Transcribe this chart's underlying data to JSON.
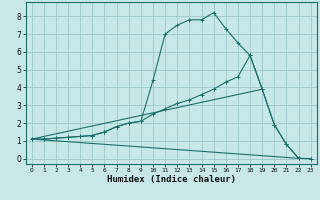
{
  "title": "",
  "xlabel": "Humidex (Indice chaleur)",
  "bg_color": "#c8e8e8",
  "line_color": "#1a7068",
  "grid_color": "#a0c8c8",
  "xlim": [
    -0.5,
    23.5
  ],
  "ylim": [
    -0.3,
    8.8
  ],
  "xticks": [
    0,
    1,
    2,
    3,
    4,
    5,
    6,
    7,
    8,
    9,
    10,
    11,
    12,
    13,
    14,
    15,
    16,
    17,
    18,
    19,
    20,
    21,
    22,
    23
  ],
  "yticks": [
    0,
    1,
    2,
    3,
    4,
    5,
    6,
    7,
    8
  ],
  "line1_x": [
    0,
    1,
    2,
    3,
    4,
    5,
    6,
    7,
    8,
    9,
    10,
    11,
    12,
    13,
    14,
    15,
    16,
    17,
    18,
    19,
    20,
    21,
    22,
    23
  ],
  "line1_y": [
    1.1,
    1.1,
    1.15,
    1.2,
    1.25,
    1.3,
    1.5,
    1.8,
    2.0,
    2.1,
    4.4,
    7.0,
    7.5,
    7.8,
    7.8,
    8.2,
    7.3,
    6.5,
    5.8,
    3.9,
    1.9,
    0.8,
    0.02,
    0.0
  ],
  "line2_x": [
    0,
    1,
    2,
    3,
    4,
    5,
    6,
    7,
    8,
    9,
    10,
    11,
    12,
    13,
    14,
    15,
    16,
    17,
    18,
    19,
    20,
    21,
    22,
    23
  ],
  "line2_y": [
    1.1,
    1.1,
    1.15,
    1.2,
    1.25,
    1.3,
    1.5,
    1.8,
    2.0,
    2.1,
    2.5,
    2.8,
    3.1,
    3.3,
    3.6,
    3.9,
    4.3,
    4.6,
    5.8,
    3.9,
    1.9,
    0.8,
    0.02,
    0.0
  ],
  "line3_x": [
    0,
    22
  ],
  "line3_y": [
    1.1,
    0.02
  ],
  "line4_x": [
    0,
    19
  ],
  "line4_y": [
    1.1,
    3.9
  ]
}
